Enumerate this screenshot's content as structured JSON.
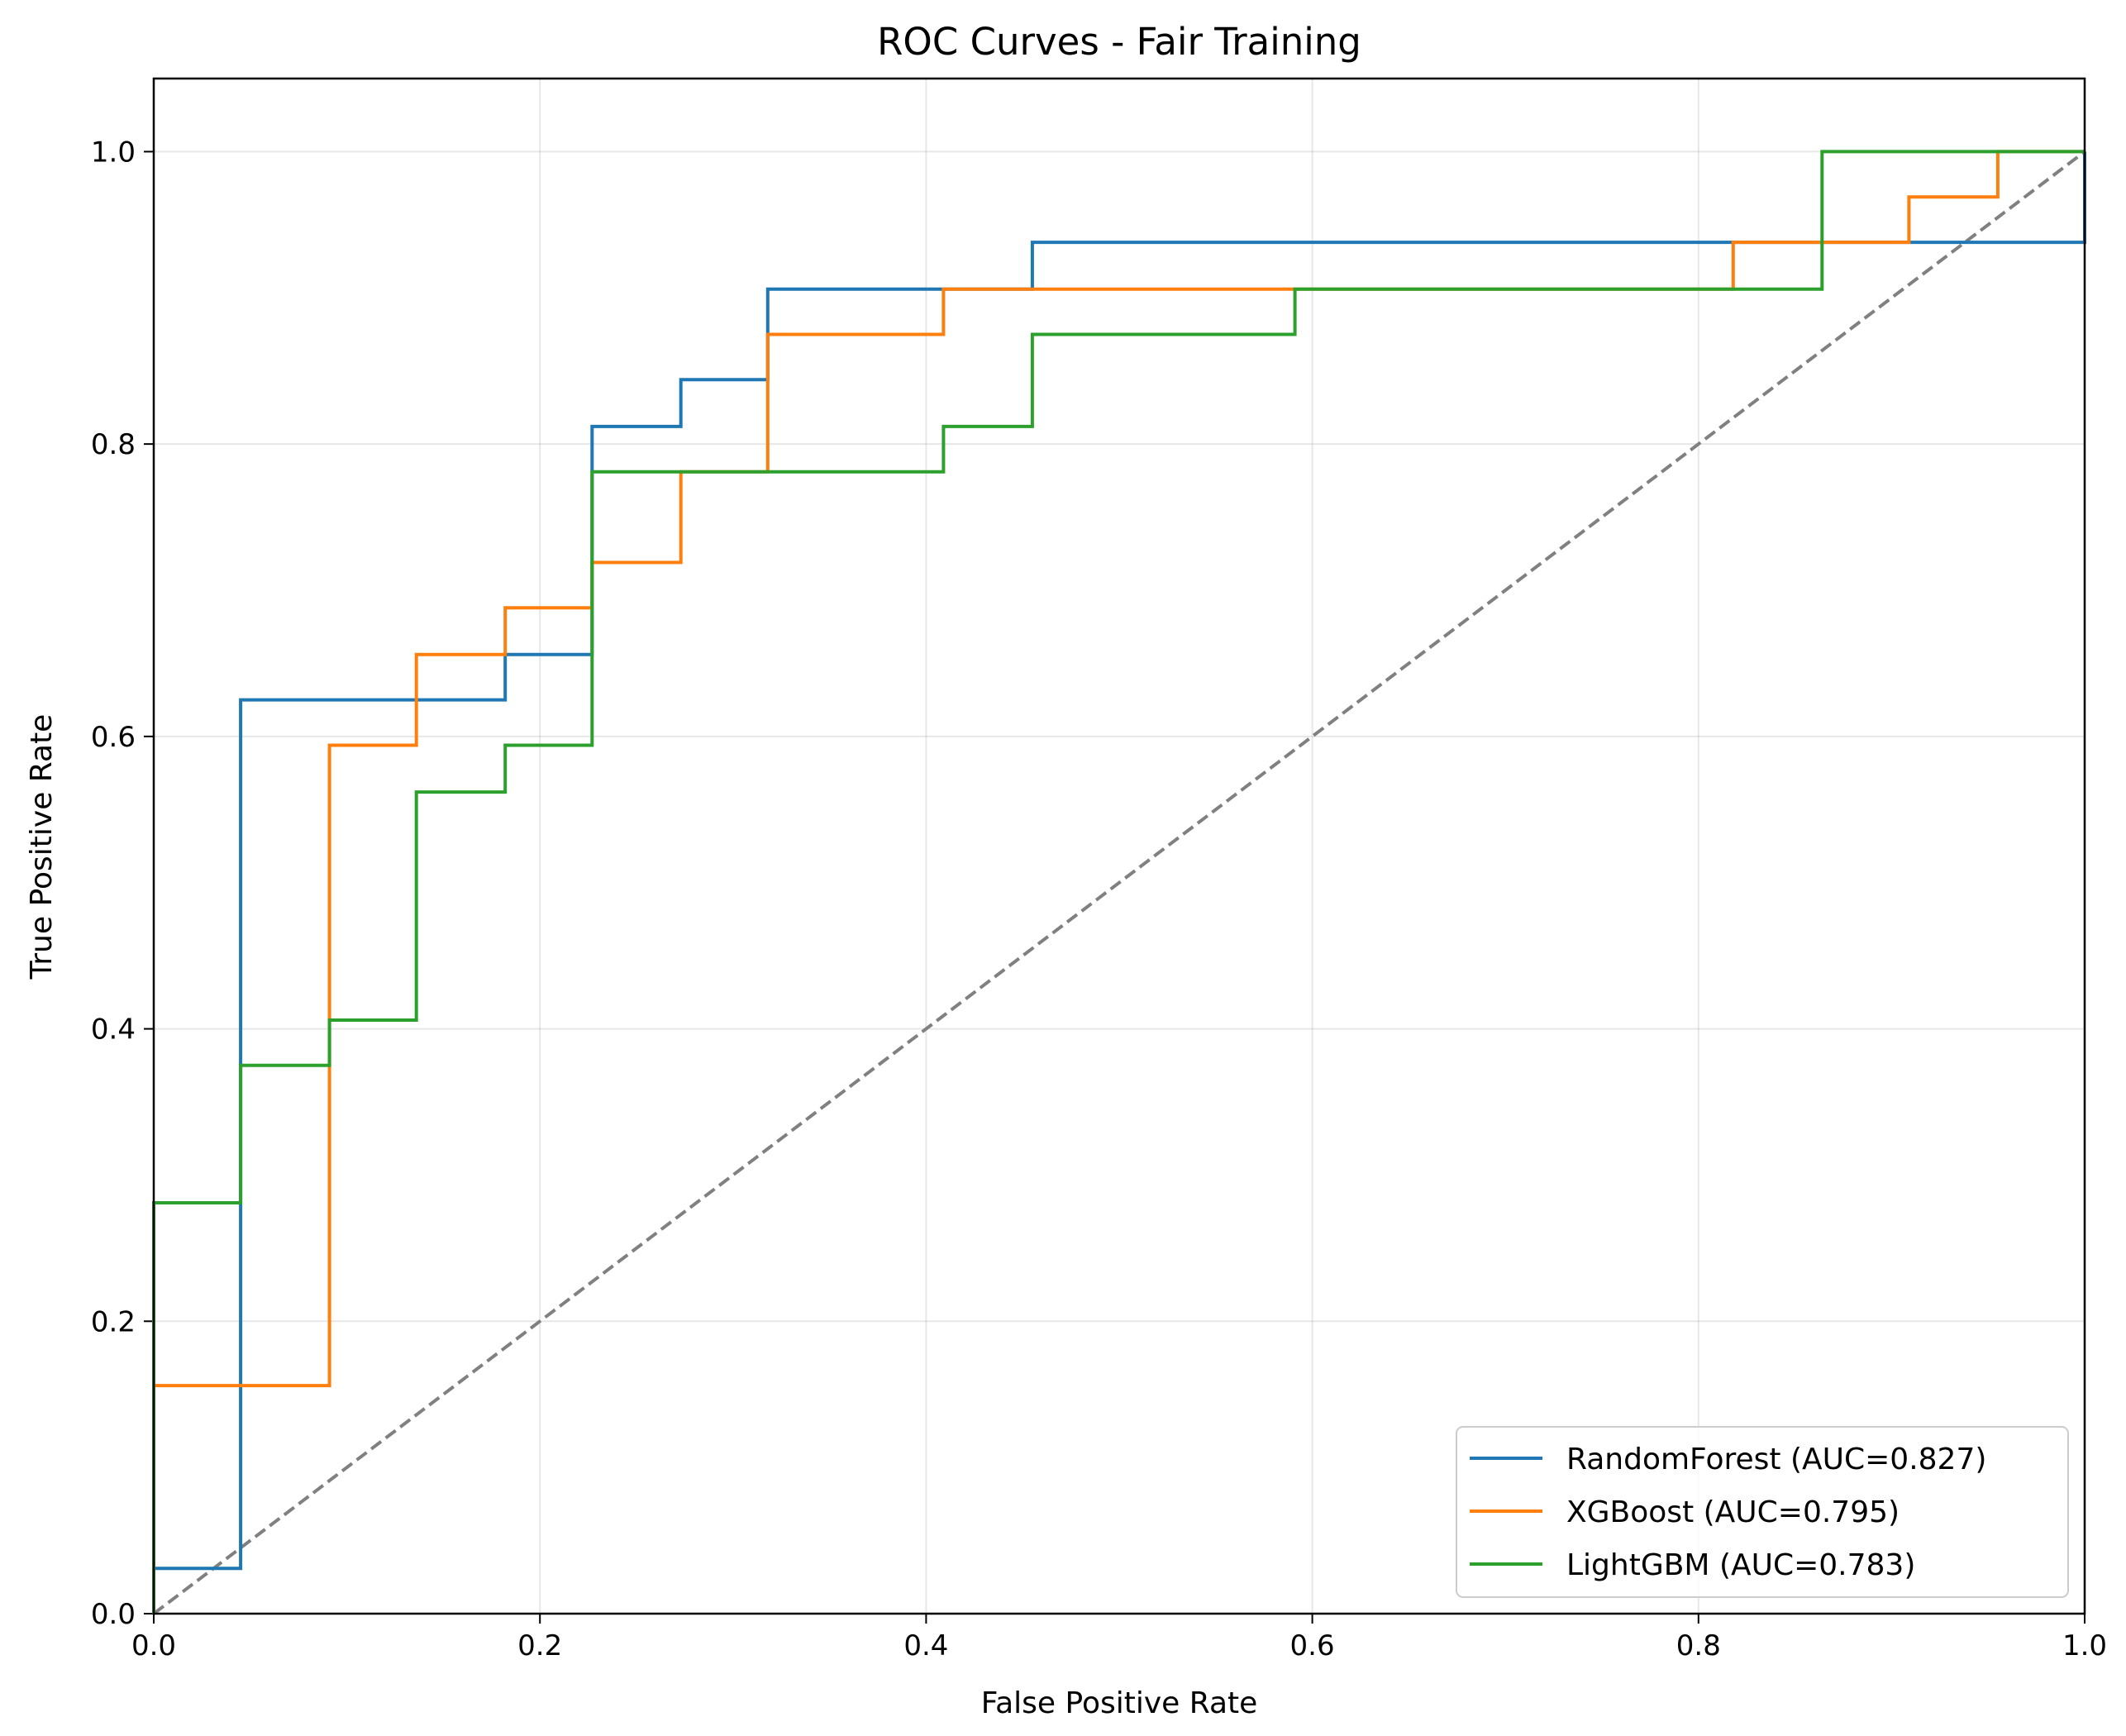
{
  "chart_data": {
    "type": "line",
    "title": "ROC Curves - Fair Training",
    "xlabel": "False Positive Rate",
    "ylabel": "True Positive Rate",
    "xlim": [
      0.0,
      1.0
    ],
    "ylim": [
      0.0,
      1.05
    ],
    "xticks": [
      "0.0",
      "0.2",
      "0.4",
      "0.6",
      "0.8",
      "1.0"
    ],
    "yticks": [
      "0.0",
      "0.2",
      "0.4",
      "0.6",
      "0.8",
      "1.0"
    ],
    "grid": true,
    "legend_position": "lower-right",
    "series": [
      {
        "name": "RandomForest (AUC=0.827)",
        "color": "#1f77b4",
        "x": [
          0.0,
          0.0,
          0.045,
          0.045,
          0.182,
          0.182,
          0.227,
          0.227,
          0.273,
          0.273,
          0.318,
          0.318,
          0.455,
          0.455,
          1.0,
          1.0
        ],
        "y": [
          0.0,
          0.031,
          0.031,
          0.625,
          0.625,
          0.656,
          0.656,
          0.812,
          0.812,
          0.844,
          0.844,
          0.906,
          0.906,
          0.938,
          0.938,
          1.0
        ]
      },
      {
        "name": "XGBoost (AUC=0.795)",
        "color": "#ff7f0e",
        "x": [
          0.0,
          0.0,
          0.091,
          0.091,
          0.136,
          0.136,
          0.182,
          0.182,
          0.227,
          0.227,
          0.273,
          0.273,
          0.318,
          0.318,
          0.409,
          0.409,
          0.818,
          0.818,
          0.909,
          0.909,
          0.955,
          0.955,
          1.0
        ],
        "y": [
          0.0,
          0.156,
          0.156,
          0.594,
          0.594,
          0.656,
          0.656,
          0.688,
          0.688,
          0.719,
          0.719,
          0.781,
          0.781,
          0.875,
          0.875,
          0.906,
          0.906,
          0.938,
          0.938,
          0.969,
          0.969,
          1.0,
          1.0
        ]
      },
      {
        "name": "LightGBM (AUC=0.783)",
        "color": "#2ca02c",
        "x": [
          0.0,
          0.0,
          0.045,
          0.045,
          0.091,
          0.091,
          0.136,
          0.136,
          0.182,
          0.182,
          0.227,
          0.227,
          0.409,
          0.409,
          0.455,
          0.455,
          0.591,
          0.591,
          0.864,
          0.864,
          1.0
        ],
        "y": [
          0.0,
          0.281,
          0.281,
          0.375,
          0.375,
          0.406,
          0.406,
          0.562,
          0.562,
          0.594,
          0.594,
          0.781,
          0.781,
          0.812,
          0.812,
          0.875,
          0.875,
          0.906,
          0.906,
          1.0,
          1.0
        ]
      }
    ],
    "reference_line": {
      "x": [
        0.0,
        1.0
      ],
      "y": [
        0.0,
        1.0
      ],
      "color": "#808080",
      "style": "dashed"
    }
  }
}
